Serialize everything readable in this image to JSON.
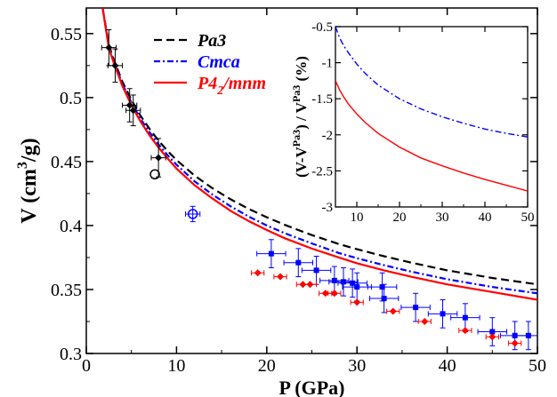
{
  "chart_data": [
    {
      "type": "line",
      "xlabel": "P (GPa)",
      "ylabel_main": "V (cm",
      "ylabel_sup": "3",
      "ylabel_end": "/g)",
      "xlim": [
        0,
        50
      ],
      "ylim": [
        0.3,
        0.57
      ],
      "x_ticks": [
        0,
        10,
        20,
        30,
        40,
        50
      ],
      "x_tick_labels": [
        "0",
        "10",
        "20",
        "30",
        "40",
        "50"
      ],
      "y_ticks": [
        0.3,
        0.35,
        0.4,
        0.45,
        0.5,
        0.55
      ],
      "y_tick_labels": [
        "0.3",
        "0.35",
        "0.4",
        "0.45",
        "0.5",
        "0.55"
      ],
      "legend_position": "top-left",
      "series": [
        {
          "name": "Pa3",
          "style": "dashed",
          "color": "#000000",
          "points": [
            [
              1.8,
              0.57
            ],
            [
              2.5,
              0.5414
            ],
            [
              3,
              0.5305
            ],
            [
              4,
              0.5123
            ],
            [
              5,
              0.4981
            ],
            [
              6,
              0.4859
            ],
            [
              7,
              0.4756
            ],
            [
              8,
              0.4664
            ],
            [
              9,
              0.4583
            ],
            [
              10,
              0.4512
            ],
            [
              12,
              0.439
            ],
            [
              14,
              0.429
            ],
            [
              16,
              0.4205
            ],
            [
              18,
              0.413
            ],
            [
              20,
              0.4065
            ],
            [
              22,
              0.4005
            ],
            [
              25,
              0.3925
            ],
            [
              28,
              0.3855
            ],
            [
              30,
              0.3815
            ],
            [
              33,
              0.376
            ],
            [
              36,
              0.371
            ],
            [
              40,
              0.365
            ],
            [
              45,
              0.359
            ],
            [
              50,
              0.354
            ]
          ]
        },
        {
          "name": "Cmca",
          "style": "dashdot",
          "color": "#0000ff",
          "points": [
            [
              1.8,
              0.57
            ],
            [
              2.5,
              0.54
            ],
            [
              3,
              0.529
            ],
            [
              4,
              0.5105
            ],
            [
              5,
              0.496
            ],
            [
              6,
              0.4835
            ],
            [
              7,
              0.473
            ],
            [
              8,
              0.4635
            ],
            [
              9,
              0.455
            ],
            [
              10,
              0.4475
            ],
            [
              12,
              0.4345
            ],
            [
              14,
              0.424
            ],
            [
              16,
              0.415
            ],
            [
              18,
              0.407
            ],
            [
              20,
              0.4
            ],
            [
              22,
              0.394
            ],
            [
              25,
              0.386
            ],
            [
              28,
              0.3785
            ],
            [
              30,
              0.3745
            ],
            [
              33,
              0.369
            ],
            [
              36,
              0.364
            ],
            [
              40,
              0.358
            ],
            [
              45,
              0.352
            ],
            [
              50,
              0.347
            ]
          ]
        },
        {
          "name": "P4₂/mnm",
          "name_main": "P4",
          "name_sub": "2",
          "name_end": "/mnm",
          "style": "solid",
          "color": "#ff0000",
          "points": [
            [
              1.8,
              0.57
            ],
            [
              2.5,
              0.539
            ],
            [
              3,
              0.528
            ],
            [
              4,
              0.509
            ],
            [
              5,
              0.494
            ],
            [
              6,
              0.4815
            ],
            [
              7,
              0.4705
            ],
            [
              8,
              0.461
            ],
            [
              9,
              0.4525
            ],
            [
              10,
              0.4445
            ],
            [
              12,
              0.4315
            ],
            [
              14,
              0.421
            ],
            [
              16,
              0.4115
            ],
            [
              18,
              0.4035
            ],
            [
              20,
              0.3965
            ],
            [
              22,
              0.39
            ],
            [
              25,
              0.382
            ],
            [
              28,
              0.375
            ],
            [
              30,
              0.3705
            ],
            [
              33,
              0.365
            ],
            [
              36,
              0.36
            ],
            [
              40,
              0.354
            ],
            [
              45,
              0.348
            ],
            [
              50,
              0.342
            ]
          ]
        }
      ],
      "data_points": [
        {
          "set": "black-diamonds",
          "color": "#000000",
          "marker": "diamond",
          "points": [
            [
              2.5,
              0.539,
              0.8,
              0.014
            ],
            [
              3.2,
              0.525,
              0.8,
              0.013
            ],
            [
              4.8,
              0.494,
              0.8,
              0.013
            ],
            [
              5.2,
              0.49,
              0.8,
              0.012
            ],
            [
              8.0,
              0.453,
              0.8,
              0.015
            ]
          ]
        },
        {
          "set": "black-open-circle",
          "color": "#000000",
          "marker": "open-circle",
          "points": [
            [
              7.6,
              0.44,
              0,
              0
            ]
          ]
        },
        {
          "set": "blue-open-circle",
          "color": "#0000ff",
          "marker": "open-circle",
          "points": [
            [
              11.8,
              0.409,
              0.8,
              0.006
            ]
          ]
        },
        {
          "set": "blue-squares",
          "color": "#0000ff",
          "marker": "square",
          "points": [
            [
              20.5,
              0.378,
              1.6,
              0.011
            ],
            [
              23.5,
              0.371,
              1.6,
              0.011
            ],
            [
              25.5,
              0.365,
              1.6,
              0.011
            ],
            [
              27.5,
              0.357,
              1.6,
              0.011
            ],
            [
              28.5,
              0.356,
              1.6,
              0.011
            ],
            [
              29.5,
              0.355,
              1.6,
              0.011
            ],
            [
              30.0,
              0.352,
              1.6,
              0.011
            ],
            [
              32.8,
              0.352,
              1.6,
              0.011
            ],
            [
              33.0,
              0.343,
              1.6,
              0.011
            ],
            [
              36.5,
              0.336,
              1.6,
              0.011
            ],
            [
              39.5,
              0.331,
              1.6,
              0.011
            ],
            [
              42.0,
              0.328,
              1.6,
              0.011
            ],
            [
              45.0,
              0.317,
              1.6,
              0.011
            ],
            [
              47.5,
              0.314,
              1.6,
              0.011
            ],
            [
              49.0,
              0.314,
              1.6,
              0.011
            ]
          ]
        },
        {
          "set": "red-diamonds",
          "color": "#ff0000",
          "marker": "diamond",
          "points": [
            [
              19.0,
              0.363,
              0.7,
              0
            ],
            [
              21.5,
              0.36,
              0.7,
              0
            ],
            [
              24.0,
              0.354,
              0.7,
              0
            ],
            [
              24.8,
              0.354,
              0.7,
              0
            ],
            [
              26.5,
              0.347,
              0.7,
              0
            ],
            [
              27.5,
              0.347,
              0.7,
              0
            ],
            [
              30.0,
              0.34,
              0.7,
              0
            ],
            [
              34.0,
              0.333,
              0.7,
              0
            ],
            [
              37.5,
              0.325,
              0.7,
              0
            ],
            [
              42.0,
              0.318,
              0.7,
              0
            ],
            [
              45.0,
              0.313,
              0.7,
              0
            ],
            [
              47.5,
              0.308,
              0.7,
              0
            ]
          ]
        }
      ]
    },
    {
      "type": "line",
      "ylabel_text": "(V-V",
      "ylabel_sup1": "Pa3",
      "ylabel_mid": ") / V",
      "ylabel_sup2": "Pa3",
      "ylabel_end": "  (%)",
      "xlim": [
        5,
        50
      ],
      "ylim": [
        -3,
        -0.5
      ],
      "x_ticks": [
        10,
        20,
        30,
        40,
        50
      ],
      "x_tick_labels": [
        "10",
        "20",
        "30",
        "40",
        "50"
      ],
      "y_ticks": [
        -3,
        -2.5,
        -2,
        -1.5,
        -1,
        -0.5
      ],
      "y_tick_labels": [
        "-3",
        "-2.5",
        "-2",
        "-1.5",
        "-1",
        "-0.5"
      ],
      "series": [
        {
          "color": "#0000ff",
          "style": "dashdot",
          "points": [
            [
              5,
              -0.5
            ],
            [
              6,
              -0.66
            ],
            [
              7,
              -0.77
            ],
            [
              8,
              -0.86
            ],
            [
              10,
              -1.02
            ],
            [
              12,
              -1.15
            ],
            [
              15,
              -1.31
            ],
            [
              20,
              -1.5
            ],
            [
              25,
              -1.64
            ],
            [
              30,
              -1.75
            ],
            [
              35,
              -1.84
            ],
            [
              40,
              -1.92
            ],
            [
              45,
              -1.98
            ],
            [
              50,
              -2.03
            ]
          ]
        },
        {
          "color": "#ff0000",
          "style": "solid",
          "points": [
            [
              5,
              -1.25
            ],
            [
              6,
              -1.38
            ],
            [
              7,
              -1.48
            ],
            [
              8,
              -1.57
            ],
            [
              10,
              -1.71
            ],
            [
              12,
              -1.83
            ],
            [
              15,
              -1.98
            ],
            [
              20,
              -2.17
            ],
            [
              25,
              -2.32
            ],
            [
              30,
              -2.43
            ],
            [
              35,
              -2.53
            ],
            [
              40,
              -2.62
            ],
            [
              45,
              -2.7
            ],
            [
              50,
              -2.78
            ]
          ]
        }
      ]
    }
  ]
}
